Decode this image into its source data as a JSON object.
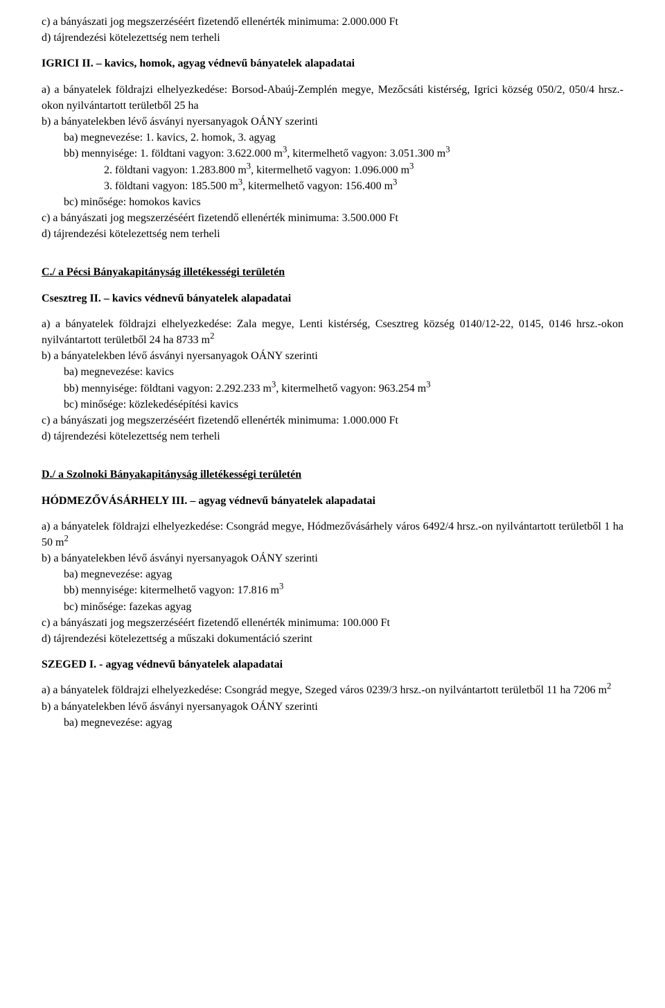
{
  "block1": {
    "line_c": "c) a bányászati jog megszerzéséért fizetendő ellenérték minimuma: 2.000.000 Ft",
    "line_d": "d) tájrendezési kötelezettség nem terheli"
  },
  "block2": {
    "title": "IGRICI II. – kavics, homok, agyag védnevű bányatelek alapadatai",
    "line_a": "a) a bányatelek földrajzi elhelyezkedése: Borsod-Abaúj-Zemplén megye, Mezőcsáti kistérség, Igrici község 050/2, 050/4 hrsz.-okon nyilvántartott területből 25 ha",
    "line_b": "b) a bányatelekben lévő ásványi nyersanyagok OÁNY szerinti",
    "line_ba": "ba) megnevezése: 1. kavics, 2. homok, 3. agyag",
    "line_bb": "bb) mennyisége: 1. földtani vagyon: 3.622.000 m",
    "line_bb_tail": ", kitermelhető vagyon: 3.051.300 m",
    "line_bb2": "2. földtani vagyon: 1.283.800 m",
    "line_bb2_tail": ", kitermelhető vagyon: 1.096.000 m",
    "line_bb3": "3. földtani vagyon: 185.500 m",
    "line_bb3_tail": ", kitermelhető vagyon: 156.400 m",
    "line_bc": "bc) minősége: homokos kavics",
    "line_c": "c) a bányászati jog megszerzéséért fizetendő ellenérték minimuma: 3.500.000 Ft",
    "line_d": "d) tájrendezési kötelezettség nem terheli"
  },
  "section_c": {
    "heading": "C./ a Pécsi Bányakapitányság illetékességi területén"
  },
  "block3": {
    "title": "Csesztreg II. – kavics védnevű bányatelek alapadatai",
    "line_a": "a) a bányatelek földrajzi elhelyezkedése: Zala megye, Lenti kistérség, Csesztreg község 0140/12-22, 0145, 0146 hrsz.-okon nyilvántartott területből 24 ha 8733 m",
    "line_b": "b) a bányatelekben lévő ásványi nyersanyagok OÁNY szerinti",
    "line_ba": "ba) megnevezése: kavics",
    "line_bb": "bb) mennyisége: földtani vagyon: 2.292.233 m",
    "line_bb_tail": ", kitermelhető vagyon: 963.254 m",
    "line_bc": "bc) minősége: közlekedésépítési kavics",
    "line_c": "c) a bányászati jog megszerzéséért fizetendő ellenérték minimuma: 1.000.000 Ft",
    "line_d": "d) tájrendezési kötelezettség nem terheli"
  },
  "section_d": {
    "heading": "D./ a Szolnoki Bányakapitányság illetékességi területén"
  },
  "block4": {
    "title": "HÓDMEZŐVÁSÁRHELY III. – agyag védnevű bányatelek alapadatai",
    "line_a": "a) a bányatelek földrajzi elhelyezkedése: Csongrád megye, Hódmezővásárhely város 6492/4 hrsz.-on nyilvántartott területből 1 ha 50 m",
    "line_b": "b) a bányatelekben lévő ásványi nyersanyagok OÁNY szerinti",
    "line_ba": "ba) megnevezése: agyag",
    "line_bb": "bb) mennyisége: kitermelhető vagyon: 17.816 m",
    "line_bc": "bc) minősége: fazekas agyag",
    "line_c": "c) a bányászati jog megszerzéséért fizetendő ellenérték minimuma: 100.000 Ft",
    "line_d": "d) tájrendezési kötelezettség a műszaki dokumentáció szerint"
  },
  "block5": {
    "title": "SZEGED I. - agyag védnevű bányatelek alapadatai",
    "line_a": "a) a bányatelek földrajzi elhelyezkedése: Csongrád megye, Szeged város 0239/3 hrsz.-on nyilvántartott területből 11 ha 7206 m",
    "line_b": "b) a bányatelekben lévő ásványi nyersanyagok OÁNY szerinti",
    "line_ba": "ba) megnevezése: agyag"
  },
  "sup2": "2",
  "sup3": "3"
}
